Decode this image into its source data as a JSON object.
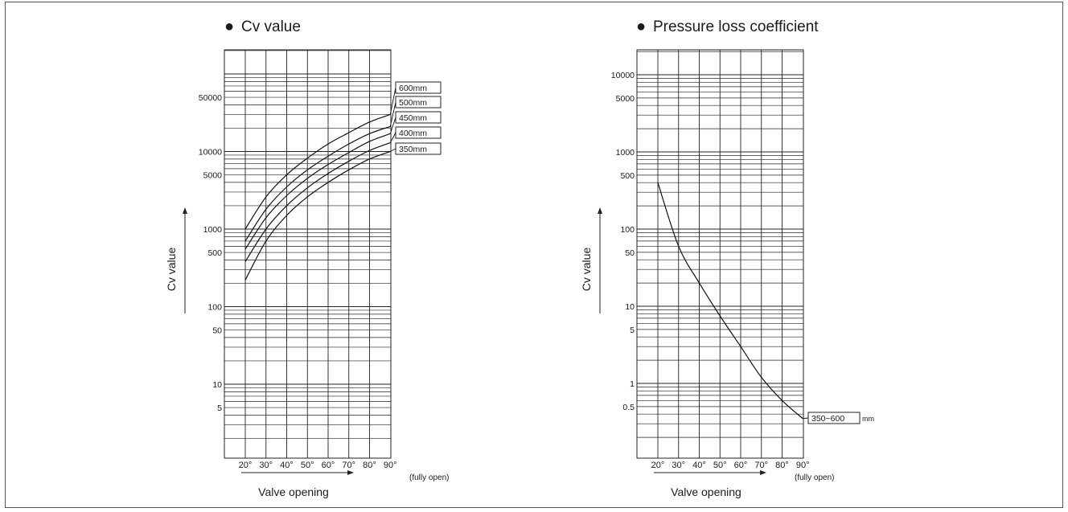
{
  "chart_data": [
    {
      "type": "line",
      "title": "Cv value",
      "title_marker": "●",
      "xlabel": "Valve opening",
      "ylabel": "Cv value",
      "x_tick_labels": [
        "20°",
        "30°",
        "40°",
        "50°",
        "60°",
        "70°",
        "80°",
        "90°"
      ],
      "x_end_note": "(fully open)",
      "y_tick_labels": [
        "50000",
        "10000",
        "5000",
        "1000",
        "500",
        "100",
        "50",
        "10",
        "5"
      ],
      "y_scale": "log",
      "xlim": [
        20,
        90
      ],
      "ylim": [
        1,
        100000
      ],
      "grid": true,
      "series": [
        {
          "name": "600mm",
          "x": [
            20,
            30,
            40,
            50,
            60,
            70,
            80,
            90
          ],
          "values": [
            1000,
            2600,
            5000,
            8200,
            12500,
            17500,
            24000,
            30000
          ]
        },
        {
          "name": "500mm",
          "x": [
            20,
            30,
            40,
            50,
            60,
            70,
            80,
            90
          ],
          "values": [
            700,
            1800,
            3500,
            5800,
            8700,
            12500,
            17000,
            21000
          ]
        },
        {
          "name": "450mm",
          "x": [
            20,
            30,
            40,
            50,
            60,
            70,
            80,
            90
          ],
          "values": [
            550,
            1400,
            2700,
            4500,
            6800,
            9700,
            13500,
            17000
          ]
        },
        {
          "name": "400mm",
          "x": [
            20,
            30,
            40,
            50,
            60,
            70,
            80,
            90
          ],
          "values": [
            380,
            1000,
            2000,
            3400,
            5200,
            7500,
            10300,
            13000
          ]
        },
        {
          "name": "350mm",
          "x": [
            20,
            30,
            40,
            50,
            60,
            70,
            80,
            90
          ],
          "values": [
            220,
            700,
            1500,
            2600,
            4000,
            5800,
            8000,
            10000
          ]
        }
      ]
    },
    {
      "type": "line",
      "title": "Pressure loss coefficient",
      "title_marker": "●",
      "xlabel": "Valve opening",
      "ylabel": "Cv value",
      "x_tick_labels": [
        "20°",
        "30°",
        "40°",
        "50°",
        "60°",
        "70°",
        "80°",
        "90°"
      ],
      "x_end_note": "(fully open)",
      "y_tick_labels": [
        "10000",
        "5000",
        "1000",
        "500",
        "100",
        "50",
        "10",
        "5",
        "1",
        "0.5"
      ],
      "y_scale": "log",
      "xlim": [
        20,
        90
      ],
      "ylim": [
        0.1,
        100000
      ],
      "grid": true,
      "series": [
        {
          "name": "350~600",
          "unit": "mm",
          "x": [
            20,
            30,
            40,
            50,
            60,
            70,
            80,
            90
          ],
          "values": [
            400,
            60,
            20,
            7.5,
            3,
            1.2,
            0.6,
            0.35
          ]
        }
      ]
    }
  ]
}
